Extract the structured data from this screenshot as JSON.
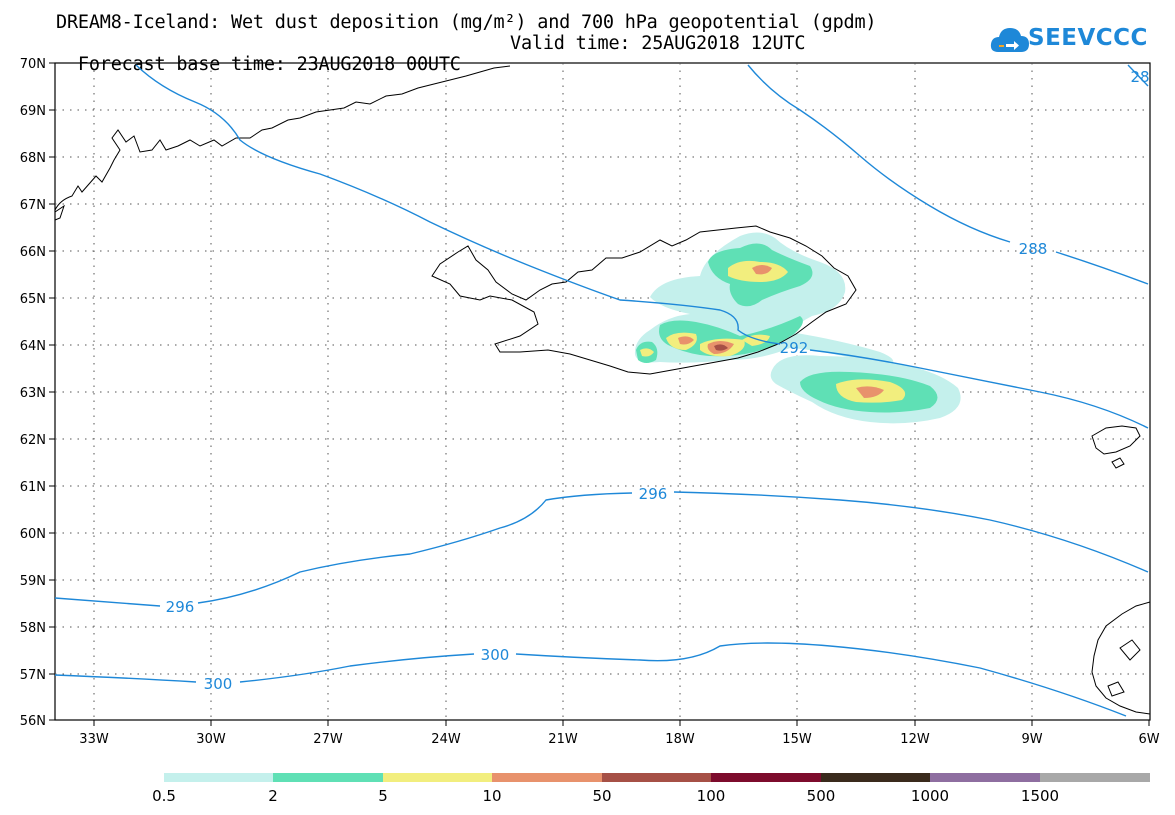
{
  "header": {
    "title_line1": "DREAM8-Iceland: Wet dust deposition (mg/m²) and 700 hPa geopotential (gpdm)",
    "forecast_base": "Forecast base time: 23AUG2018 00UTC",
    "valid_time": "Valid time: 25AUG2018 12UTC"
  },
  "logo": {
    "text": "SEEVCCC",
    "icon": "cloud-icon"
  },
  "map": {
    "lat_labels": [
      "70N",
      "69N",
      "68N",
      "67N",
      "66N",
      "65N",
      "64N",
      "63N",
      "62N",
      "61N",
      "60N",
      "59N",
      "58N",
      "57N",
      "56N"
    ],
    "lon_labels": [
      "33W",
      "30W",
      "27W",
      "24W",
      "21W",
      "18W",
      "15W",
      "12W",
      "9W",
      "6W"
    ],
    "lat_range": [
      56,
      70
    ],
    "lon_range": [
      -34.2,
      -6
    ],
    "grid": "dotted",
    "contours": [
      {
        "value_label": "28"
      },
      {
        "value_label": "288"
      },
      {
        "value_label": "292"
      },
      {
        "value_label": "296",
        "count": 2
      },
      {
        "value_label": "300",
        "count": 2
      }
    ],
    "contour_color": "#1e88d8"
  },
  "colorbar": {
    "labels": [
      "0.5",
      "2",
      "5",
      "10",
      "50",
      "100",
      "500",
      "1000",
      "1500"
    ],
    "colors": [
      "#c4f0ec",
      "#5fe0b5",
      "#f2ee7e",
      "#e8926c",
      "#a65046",
      "#7d0b2c",
      "#3a2a1c",
      "#8e6ea0",
      "#a8a8a8"
    ]
  }
}
